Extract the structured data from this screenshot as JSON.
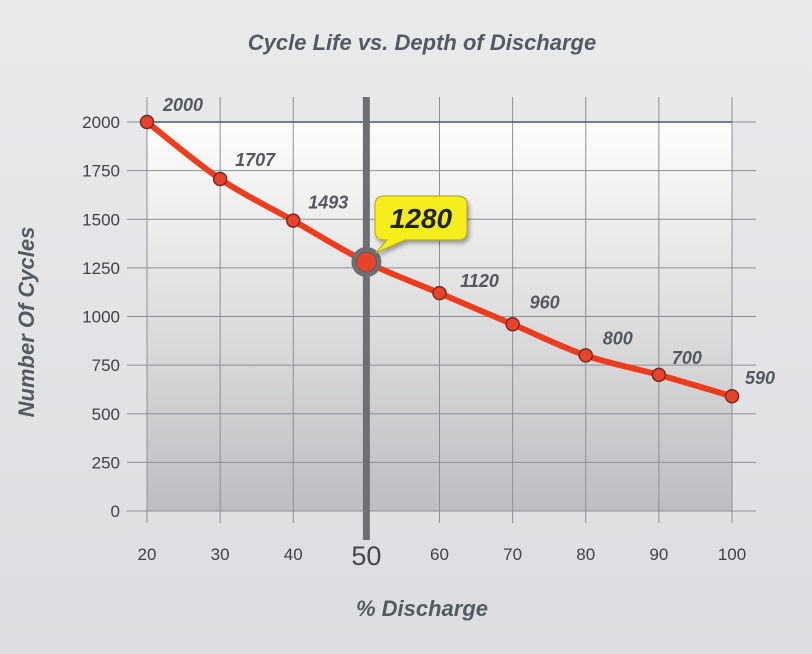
{
  "chart_data": {
    "type": "line",
    "title": "Cycle Life vs. Depth of Discharge",
    "xlabel": "% Discharge",
    "ylabel": "Number Of Cycles",
    "x": [
      20,
      30,
      40,
      50,
      60,
      70,
      80,
      90,
      100
    ],
    "series": [
      {
        "values": [
          2000,
          1707,
          1493,
          1280,
          1120,
          960,
          800,
          700,
          590
        ]
      }
    ],
    "data_labels": [
      "2000",
      "1707",
      "1493",
      "1280",
      "1120",
      "960",
      "800",
      "700",
      "590"
    ],
    "x_ticks": [
      "20",
      "30",
      "40",
      "50",
      "60",
      "70",
      "80",
      "90",
      "100"
    ],
    "y_ticks": [
      "0",
      "250",
      "500",
      "750",
      "1000",
      "1250",
      "1500",
      "1750",
      "2000"
    ],
    "xlim": [
      20,
      100
    ],
    "ylim": [
      0,
      2000
    ],
    "grid": true,
    "highlight": {
      "x": 50,
      "y": 1280,
      "label": "1280"
    },
    "colors": {
      "line": "#ee3c1c",
      "marker": "#e8432a",
      "marker_stroke": "#7a2a1c",
      "grid": "#8c8f94",
      "highlight_line": "#6d6f73",
      "callout_fill": "#f7ec1d",
      "reference_line": "#4a5578"
    }
  }
}
